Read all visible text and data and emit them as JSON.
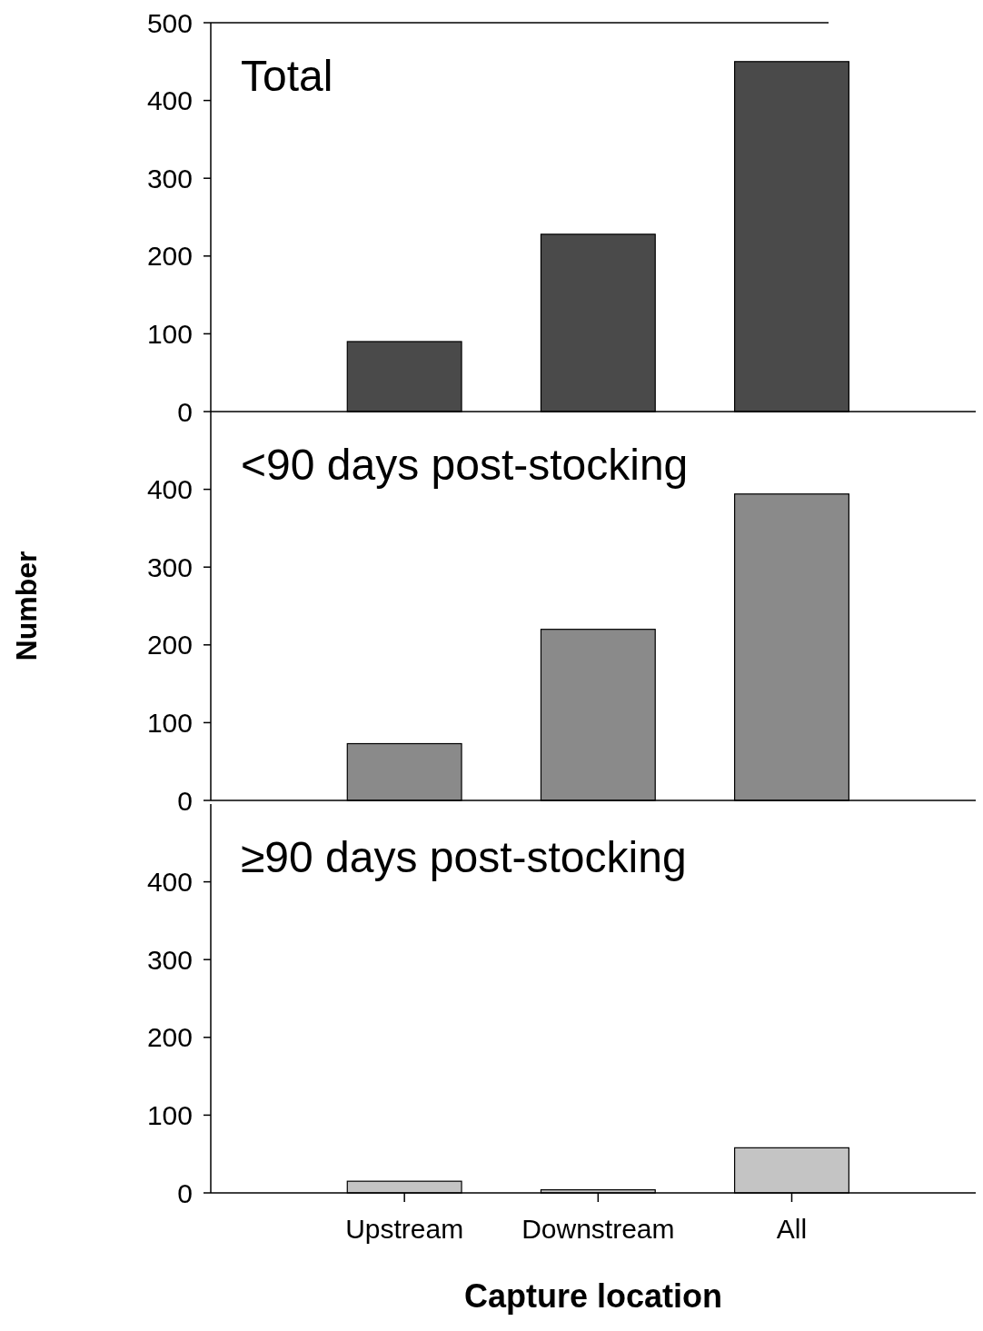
{
  "chart_data": [
    {
      "type": "bar",
      "title": "Total",
      "categories": [
        null,
        null,
        null
      ],
      "values": [
        90,
        228,
        450
      ],
      "color": "#4a4a4a",
      "ylim": [
        0,
        500
      ],
      "yticks": [
        0,
        100,
        200,
        300,
        400,
        500
      ],
      "tick_labels": "y"
    },
    {
      "type": "bar",
      "title": "<90 days post-stocking",
      "ylabel": "Number",
      "categories": [
        null,
        null,
        null
      ],
      "values": [
        73,
        220,
        394
      ],
      "color": "#8a8a8a",
      "ylim": [
        0,
        500
      ],
      "yticks": [
        0,
        100,
        200,
        300,
        400
      ],
      "tick_labels": "y"
    },
    {
      "type": "bar",
      "title": "≥90 days post-stocking",
      "xlabel": "Capture location",
      "categories": [
        "Upstream",
        "Downstream",
        "All"
      ],
      "values": [
        15,
        4,
        58
      ],
      "color": "#c4c4c4",
      "ylim": [
        0,
        500
      ],
      "yticks": [
        0,
        100,
        200,
        300,
        400
      ]
    }
  ]
}
